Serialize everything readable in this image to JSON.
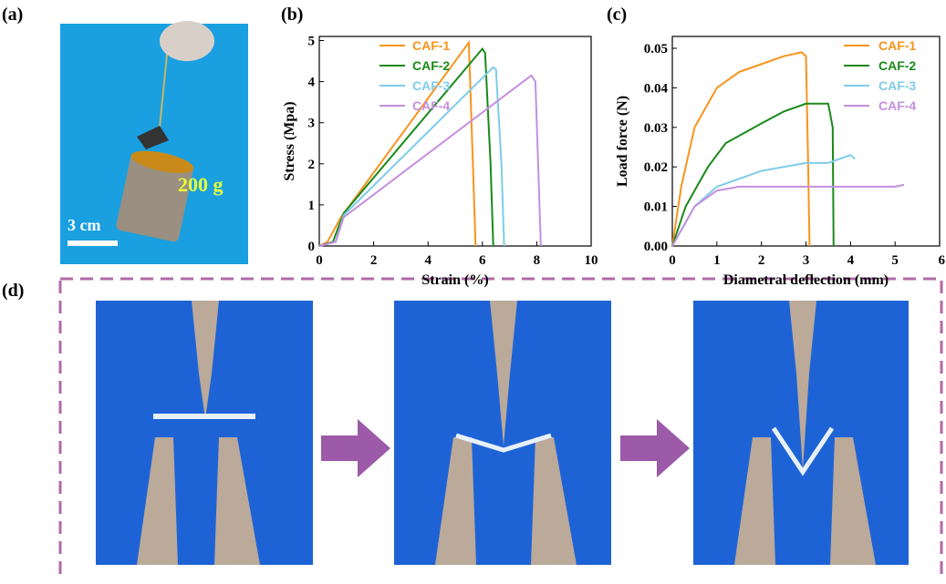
{
  "panel_a": {
    "label": "(a)",
    "weight": "200 g",
    "scale": "3 cm"
  },
  "panel_d": {
    "label": "(d)"
  },
  "chart_data": [
    {
      "type": "line",
      "panel_label": "(b)",
      "x_label": "Strain (%)",
      "y_label": "Stress (Mpa)",
      "xlim": [
        0,
        10
      ],
      "ylim": [
        0,
        5.1
      ],
      "xticks": [
        0,
        2,
        4,
        6,
        8,
        10
      ],
      "yticks": [
        0,
        1,
        2,
        3,
        4,
        5
      ],
      "grid": false,
      "legend": "upper-left",
      "series": [
        {
          "name": "CAF-1",
          "color": "#f7941d",
          "x": [
            0,
            0.3,
            0.8,
            5.5,
            5.65,
            5.75
          ],
          "values": [
            0,
            0.1,
            0.7,
            4.95,
            2,
            0
          ]
        },
        {
          "name": "CAF-2",
          "color": "#1a8a1a",
          "x": [
            0,
            0.5,
            0.9,
            6.0,
            6.1,
            6.3,
            6.4
          ],
          "values": [
            0,
            0.1,
            0.8,
            4.8,
            4.7,
            2,
            0
          ]
        },
        {
          "name": "CAF-3",
          "color": "#7fcbea",
          "x": [
            0,
            0.6,
            0.9,
            6.4,
            6.5,
            6.7,
            6.8
          ],
          "values": [
            0,
            0.1,
            0.75,
            4.35,
            4.3,
            2,
            0
          ]
        },
        {
          "name": "CAF-4",
          "color": "#c48fdf",
          "x": [
            0,
            0.6,
            0.9,
            7.8,
            7.95,
            8.1,
            8.15
          ],
          "values": [
            0,
            0.1,
            0.7,
            4.15,
            4.0,
            1,
            0
          ]
        }
      ]
    },
    {
      "type": "line",
      "panel_label": "(c)",
      "x_label": "Diametral deflection (mm)",
      "y_label": "Load force (N)",
      "xlim": [
        0,
        6
      ],
      "ylim": [
        0,
        0.053
      ],
      "xticks": [
        0,
        1,
        2,
        3,
        4,
        5,
        6
      ],
      "yticks": [
        {
          "value": 0,
          "label": "0.00"
        },
        {
          "value": 0.01,
          "label": "0.01"
        },
        {
          "value": 0.02,
          "label": "0.02"
        },
        {
          "value": 0.03,
          "label": "0.03"
        },
        {
          "value": 0.04,
          "label": "0.04"
        },
        {
          "value": 0.05,
          "label": "0.05"
        }
      ],
      "grid": false,
      "legend": "upper-right",
      "series": [
        {
          "name": "CAF-1",
          "color": "#f7941d",
          "x": [
            0,
            0.2,
            0.5,
            1,
            1.5,
            2,
            2.5,
            2.9,
            3.0,
            3.05,
            3.08
          ],
          "values": [
            0,
            0.015,
            0.03,
            0.04,
            0.044,
            0.046,
            0.048,
            0.049,
            0.048,
            0.02,
            0
          ]
        },
        {
          "name": "CAF-2",
          "color": "#1a8a1a",
          "x": [
            0,
            0.3,
            0.8,
            1.2,
            2,
            2.5,
            3,
            3.5,
            3.6,
            3.62
          ],
          "values": [
            0,
            0.01,
            0.02,
            0.026,
            0.031,
            0.034,
            0.036,
            0.036,
            0.03,
            0
          ]
        },
        {
          "name": "CAF-3",
          "color": "#7fcbea",
          "x": [
            0,
            0.5,
            1,
            2,
            3,
            3.5,
            4,
            4.1
          ],
          "values": [
            0,
            0.01,
            0.015,
            0.019,
            0.021,
            0.021,
            0.023,
            0.022
          ]
        },
        {
          "name": "CAF-4",
          "color": "#c48fdf",
          "x": [
            0,
            0.5,
            1,
            1.5,
            3,
            4,
            5,
            5.2
          ],
          "values": [
            0,
            0.01,
            0.014,
            0.015,
            0.015,
            0.015,
            0.015,
            0.0155
          ]
        }
      ]
    }
  ]
}
